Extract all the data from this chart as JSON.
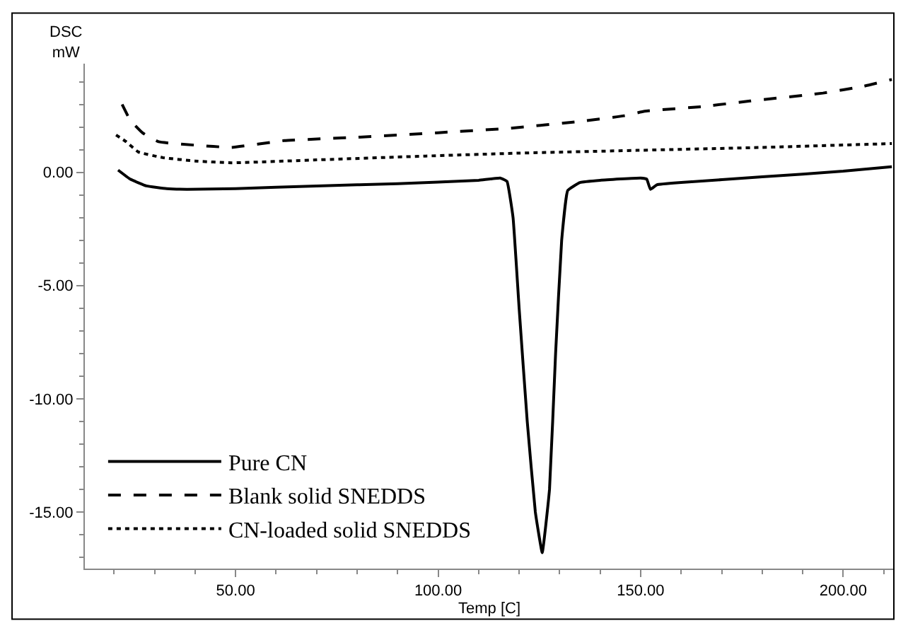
{
  "chart_data": {
    "type": "line",
    "xlabel": "Temp [C]",
    "ylabel": "DSC\nmW",
    "xlim": [
      12.8,
      212.5
    ],
    "ylim": [
      -17.5,
      4.8
    ],
    "xticks": [
      {
        "value": 50,
        "label": "50.00"
      },
      {
        "value": 100,
        "label": "100.00"
      },
      {
        "value": 150,
        "label": "150.00"
      },
      {
        "value": 200,
        "label": "200.00"
      }
    ],
    "yticks": [
      {
        "value": 0,
        "label": "0.00"
      },
      {
        "value": -5,
        "label": "-5.00"
      },
      {
        "value": -10,
        "label": "-10.00"
      },
      {
        "value": -15,
        "label": "-15.00"
      }
    ],
    "legend": "bottom left",
    "marker": "none",
    "series": [
      {
        "name": "Pure CN",
        "color": "#000000",
        "line_style": "solid",
        "x": [
          21,
          24,
          28,
          33,
          38,
          50,
          70,
          90,
          110,
          115.3,
          117,
          118.5,
          120,
          122,
          124,
          125.7,
          127.5,
          129,
          130.5,
          132,
          135,
          140,
          150,
          151.5,
          152.4,
          154,
          160,
          180,
          200,
          212
        ],
        "values": [
          0.1,
          -0.3,
          -0.6,
          -0.72,
          -0.75,
          -0.72,
          -0.6,
          -0.5,
          -0.35,
          -0.25,
          -0.4,
          -2,
          -6,
          -11,
          -15,
          -16.8,
          -14,
          -8,
          -3,
          -0.8,
          -0.45,
          -0.35,
          -0.25,
          -0.3,
          -0.75,
          -0.55,
          -0.45,
          -0.2,
          0.05,
          0.25
        ]
      },
      {
        "name": "Blank solid SNEDDS",
        "color": "#000000",
        "line_style": "dashed",
        "x": [
          22,
          24,
          27,
          31,
          40,
          49,
          62,
          80,
          100,
          118,
          135,
          146,
          151,
          165,
          177,
          195,
          205,
          212
        ],
        "values": [
          3.0,
          2.3,
          1.75,
          1.35,
          1.2,
          1.1,
          1.4,
          1.55,
          1.75,
          1.95,
          2.25,
          2.5,
          2.7,
          2.9,
          3.15,
          3.5,
          3.8,
          4.1
        ]
      },
      {
        "name": "CN-loaded solid SNEDDS",
        "color": "#000000",
        "line_style": "dotted",
        "x": [
          20.5,
          23,
          26,
          32,
          40,
          49,
          70,
          97,
          120,
          149,
          180,
          212
        ],
        "values": [
          1.65,
          1.35,
          0.9,
          0.65,
          0.5,
          0.42,
          0.55,
          0.72,
          0.85,
          0.97,
          1.1,
          1.27
        ]
      }
    ]
  }
}
